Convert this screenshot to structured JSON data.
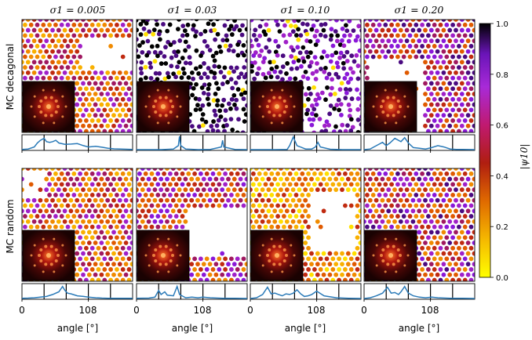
{
  "figure": {
    "column_titles": [
      "σ1 = 0.005",
      "σ1 = 0.03",
      "σ1 = 0.10",
      "σ1 = 0.20"
    ],
    "row_labels": [
      "MC decagonal",
      "MC random"
    ],
    "x_axis_label": "angle [°]",
    "x_ticks": [
      "0",
      "108"
    ],
    "colorbar": {
      "label": "|ψ10|",
      "ticks": [
        "0.0",
        "0.2",
        "0.4",
        "0.6",
        "0.8",
        "1.0"
      ],
      "colormap": "gnuplot-like (yellow → orange → red → purple → black)"
    }
  },
  "chart_data": [
    {
      "type": "line",
      "row": "MC decagonal",
      "column": "σ1 = 0.005",
      "x": [
        0,
        10,
        20,
        25,
        30,
        36,
        40,
        45,
        50,
        55,
        60,
        70,
        80,
        90,
        100,
        108,
        120,
        130,
        140,
        150,
        160,
        170,
        180
      ],
      "y": [
        0.02,
        0.05,
        0.2,
        0.5,
        0.7,
        0.85,
        0.6,
        0.55,
        0.6,
        0.7,
        0.5,
        0.4,
        0.42,
        0.45,
        0.3,
        0.2,
        0.25,
        0.18,
        0.1,
        0.06,
        0.04,
        0.03,
        0.02
      ]
    },
    {
      "type": "line",
      "row": "MC decagonal",
      "column": "σ1 = 0.03",
      "x": [
        0,
        20,
        40,
        60,
        68,
        70,
        72,
        80,
        100,
        120,
        138,
        140,
        142,
        160,
        180
      ],
      "y": [
        0,
        0,
        0,
        0.05,
        0.3,
        1.0,
        0.3,
        0.05,
        0,
        0.02,
        0.2,
        0.7,
        0.2,
        0.02,
        0
      ]
    },
    {
      "type": "line",
      "row": "MC decagonal",
      "column": "σ1 = 0.10",
      "x": [
        0,
        20,
        40,
        60,
        64,
        70,
        76,
        90,
        100,
        106,
        110,
        114,
        130,
        150,
        180
      ],
      "y": [
        0,
        0,
        0,
        0.02,
        0.3,
        0.95,
        0.3,
        0.05,
        0.05,
        0.2,
        0.55,
        0.2,
        0.03,
        0,
        0
      ]
    },
    {
      "type": "line",
      "row": "MC decagonal",
      "column": "σ1 = 0.20",
      "x": [
        0,
        10,
        20,
        30,
        36,
        42,
        50,
        60,
        66,
        72,
        80,
        90,
        100,
        110,
        120,
        130,
        140,
        150,
        160,
        180
      ],
      "y": [
        0,
        0.05,
        0.3,
        0.55,
        0.3,
        0.5,
        0.85,
        0.6,
        0.9,
        0.5,
        0.15,
        0.1,
        0.05,
        0.15,
        0.3,
        0.2,
        0.05,
        0.02,
        0.01,
        0
      ]
    },
    {
      "type": "line",
      "row": "MC random",
      "column": "σ1 = 0.005",
      "x": [
        0,
        10,
        20,
        30,
        40,
        50,
        60,
        66,
        70,
        74,
        80,
        90,
        100,
        108,
        120,
        130,
        140,
        160,
        180
      ],
      "y": [
        0.02,
        0.03,
        0.05,
        0.1,
        0.15,
        0.3,
        0.5,
        0.9,
        0.6,
        0.4,
        0.35,
        0.2,
        0.15,
        0.1,
        0.05,
        0.03,
        0.02,
        0.01,
        0.01
      ]
    },
    {
      "type": "line",
      "row": "MC random",
      "column": "σ1 = 0.03",
      "x": [
        0,
        20,
        30,
        36,
        40,
        46,
        50,
        60,
        66,
        70,
        74,
        80,
        90,
        100,
        108,
        120,
        140,
        160,
        180
      ],
      "y": [
        0.02,
        0.03,
        0.1,
        0.6,
        0.3,
        0.5,
        0.25,
        0.2,
        0.9,
        0.3,
        0.2,
        0.05,
        0.1,
        0.05,
        0.1,
        0.05,
        0.02,
        0.01,
        0
      ]
    },
    {
      "type": "line",
      "row": "MC random",
      "column": "σ1 = 0.10",
      "x": [
        0,
        10,
        20,
        28,
        34,
        40,
        46,
        52,
        58,
        64,
        70,
        76,
        82,
        88,
        94,
        100,
        108,
        120,
        140,
        160,
        180
      ],
      "y": [
        0,
        0.05,
        0.3,
        0.85,
        0.35,
        0.4,
        0.3,
        0.2,
        0.35,
        0.3,
        0.4,
        0.65,
        0.35,
        0.15,
        0.2,
        0.3,
        0.55,
        0.2,
        0.05,
        0.02,
        0
      ]
    },
    {
      "type": "line",
      "row": "MC random",
      "column": "σ1 = 0.20",
      "x": [
        0,
        10,
        20,
        30,
        38,
        44,
        50,
        56,
        60,
        66,
        72,
        80,
        90,
        100,
        110,
        120,
        140,
        160,
        180
      ],
      "y": [
        0,
        0.05,
        0.2,
        0.4,
        0.85,
        0.4,
        0.45,
        0.3,
        0.5,
        0.9,
        0.4,
        0.2,
        0.1,
        0.05,
        0.1,
        0.05,
        0.02,
        0.01,
        0
      ]
    }
  ]
}
